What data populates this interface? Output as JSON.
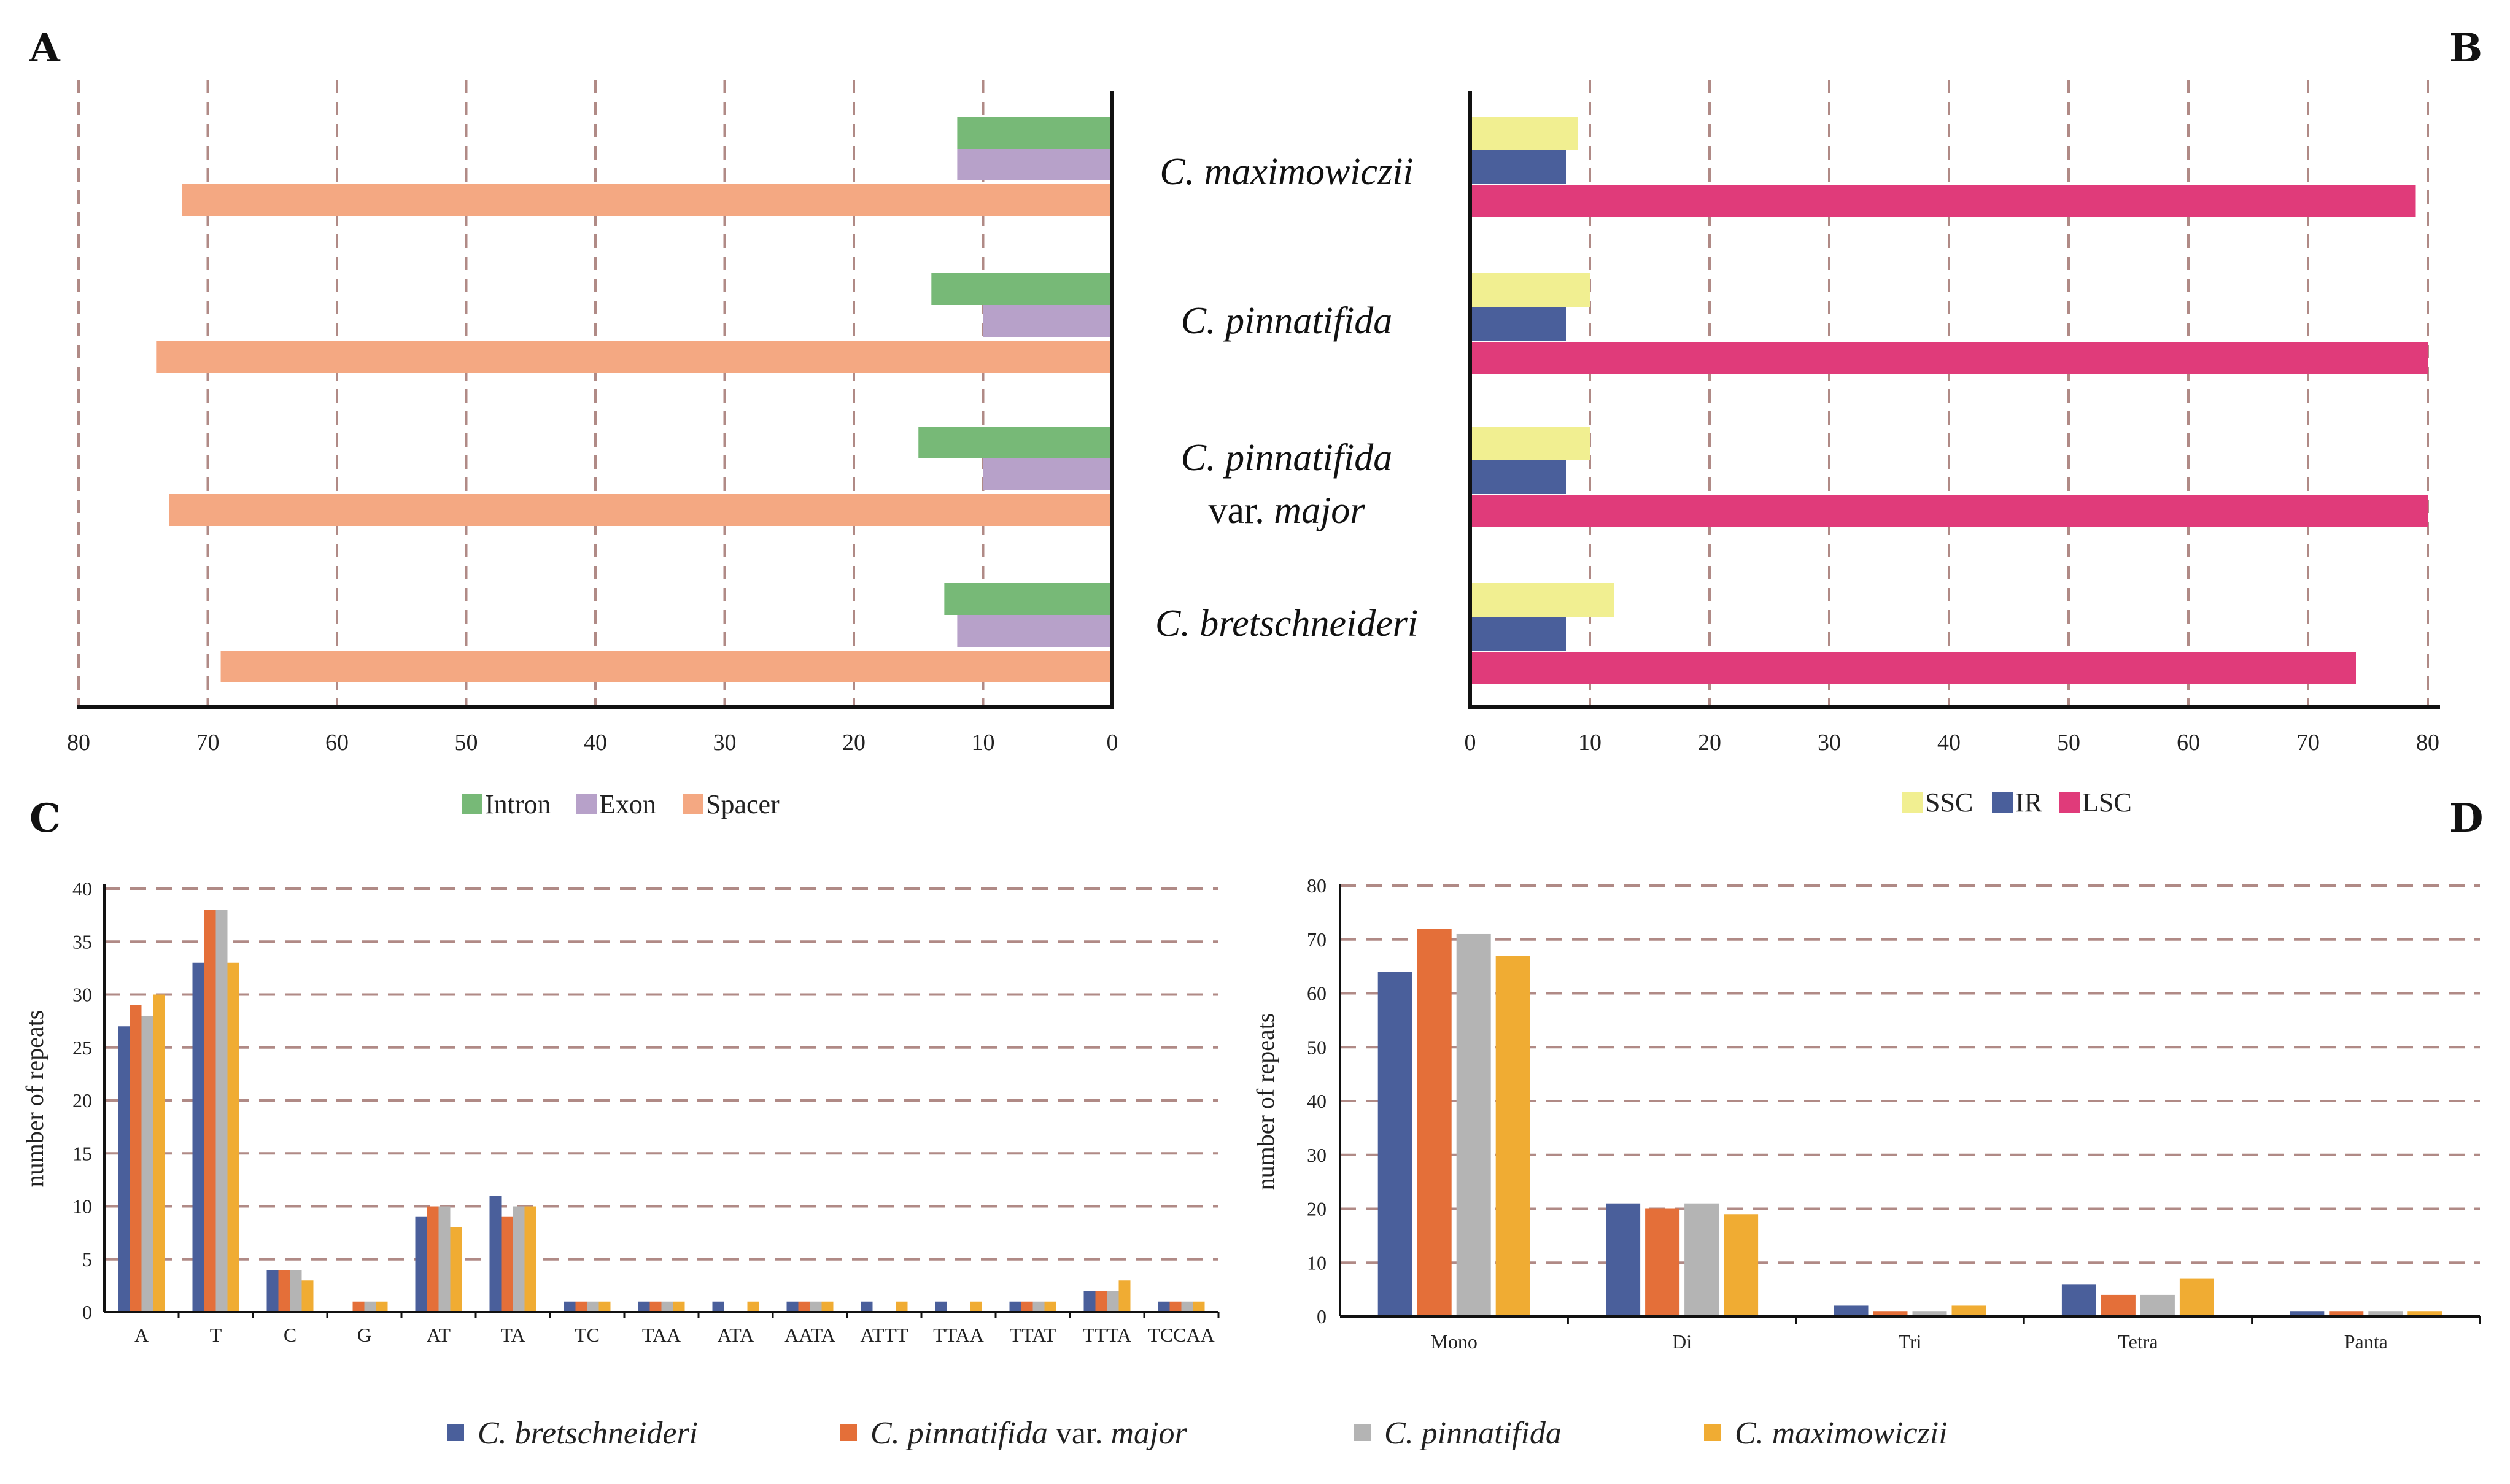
{
  "panels": {
    "A": {
      "letter": "A",
      "xlim": [
        0,
        80
      ],
      "ticks": [
        80,
        70,
        60,
        50,
        40,
        30,
        20,
        10,
        0
      ],
      "legend": [
        {
          "name": "Intron",
          "color": "#77b977"
        },
        {
          "name": "Exon",
          "color": "#b7a1c9"
        },
        {
          "name": "Spacer",
          "color": "#f4a882"
        }
      ]
    },
    "B": {
      "letter": "B",
      "xlim": [
        0,
        80
      ],
      "ticks": [
        0,
        10,
        20,
        30,
        40,
        50,
        60,
        70,
        80
      ],
      "legend": [
        {
          "name": "SSC",
          "color": "#f1ef91"
        },
        {
          "name": "IR",
          "color": "#4a5f9b"
        },
        {
          "name": "LSC",
          "color": "#e03b7a"
        }
      ]
    },
    "C": {
      "letter": "C",
      "ylabel": "number of repeats"
    },
    "D": {
      "letter": "D",
      "ylabel": "number of repeats"
    }
  },
  "species_labels": [
    {
      "italic": "C. maximowiczii",
      "extra_plain": "",
      "extra_italic": ""
    },
    {
      "italic": "C. pinnatifida",
      "extra_plain": "",
      "extra_italic": ""
    },
    {
      "italic": "C. pinnatifida",
      "extra_plain": "var. ",
      "extra_italic": "major"
    },
    {
      "italic": "C. bretschneideri",
      "extra_plain": "",
      "extra_italic": ""
    }
  ],
  "bottom_legend": [
    {
      "italic": "C. bretschneideri",
      "plain": "",
      "italic2": "",
      "color": "#4a5f9b"
    },
    {
      "italic": "C. pinnatifida",
      "plain": " var. ",
      "italic2": "major",
      "color": "#e46f39"
    },
    {
      "italic": "C. pinnatifida",
      "plain": "",
      "italic2": "",
      "color": "#b4b4b4"
    },
    {
      "italic": "C. maximowiczii",
      "plain": "",
      "italic2": "",
      "color": "#f0ac33"
    }
  ],
  "chart_data": [
    {
      "id": "A",
      "type": "bar",
      "orientation": "horizontal-left",
      "categories": [
        "C. maximowiczii",
        "C. pinnatifida",
        "C. pinnatifida var. major",
        "C. bretschneideri"
      ],
      "series": [
        {
          "name": "Intron",
          "values": [
            12,
            14,
            15,
            13
          ]
        },
        {
          "name": "Exon",
          "values": [
            12,
            10,
            10,
            12
          ]
        },
        {
          "name": "Spacer",
          "values": [
            72,
            74,
            73,
            69
          ]
        }
      ],
      "xlim": [
        0,
        80
      ]
    },
    {
      "id": "B",
      "type": "bar",
      "orientation": "horizontal-right",
      "categories": [
        "C. maximowiczii",
        "C. pinnatifida",
        "C. pinnatifida var. major",
        "C. bretschneideri"
      ],
      "series": [
        {
          "name": "SSC",
          "values": [
            9,
            10,
            10,
            12
          ]
        },
        {
          "name": "IR",
          "values": [
            8,
            8,
            8,
            8
          ]
        },
        {
          "name": "LSC",
          "values": [
            79,
            80,
            80,
            74
          ]
        }
      ],
      "xlim": [
        0,
        80
      ]
    },
    {
      "id": "C",
      "type": "bar",
      "categories": [
        "A",
        "T",
        "C",
        "G",
        "AT",
        "TA",
        "TC",
        "TAA",
        "ATA",
        "AATA",
        "ATTT",
        "TTAA",
        "TTAT",
        "TTTA",
        "TCCAA"
      ],
      "series": [
        {
          "name": "C. bretschneideri",
          "values": [
            27,
            33,
            4,
            0,
            9,
            11,
            1,
            1,
            1,
            1,
            1,
            1,
            1,
            2,
            1
          ]
        },
        {
          "name": "C. pinnatifida var. major",
          "values": [
            29,
            38,
            4,
            1,
            10,
            9,
            1,
            1,
            0,
            1,
            0,
            0,
            1,
            2,
            1
          ]
        },
        {
          "name": "C. pinnatifida",
          "values": [
            28,
            38,
            4,
            1,
            10,
            10,
            1,
            1,
            0,
            1,
            0,
            0,
            1,
            2,
            1
          ]
        },
        {
          "name": "C. maximowiczii",
          "values": [
            30,
            33,
            3,
            1,
            8,
            10,
            1,
            1,
            1,
            1,
            1,
            1,
            1,
            3,
            1
          ]
        }
      ],
      "ylim": [
        0,
        40
      ],
      "yticks": [
        0,
        5,
        10,
        15,
        20,
        25,
        30,
        35,
        40
      ],
      "ylabel": "number of repeats"
    },
    {
      "id": "D",
      "type": "bar",
      "categories": [
        "Mono",
        "Di",
        "Tri",
        "Tetra",
        "Panta"
      ],
      "series": [
        {
          "name": "C. bretschneideri",
          "values": [
            64,
            21,
            2,
            6,
            1
          ]
        },
        {
          "name": "C. pinnatifida var. major",
          "values": [
            72,
            20,
            1,
            4,
            1
          ]
        },
        {
          "name": "C. pinnatifida",
          "values": [
            71,
            21,
            1,
            4,
            1
          ]
        },
        {
          "name": "C. maximowiczii",
          "values": [
            67,
            19,
            2,
            7,
            1
          ]
        }
      ],
      "ylim": [
        0,
        80
      ],
      "yticks": [
        0,
        10,
        20,
        30,
        40,
        50,
        60,
        70,
        80
      ],
      "ylabel": "number of repeats"
    }
  ]
}
